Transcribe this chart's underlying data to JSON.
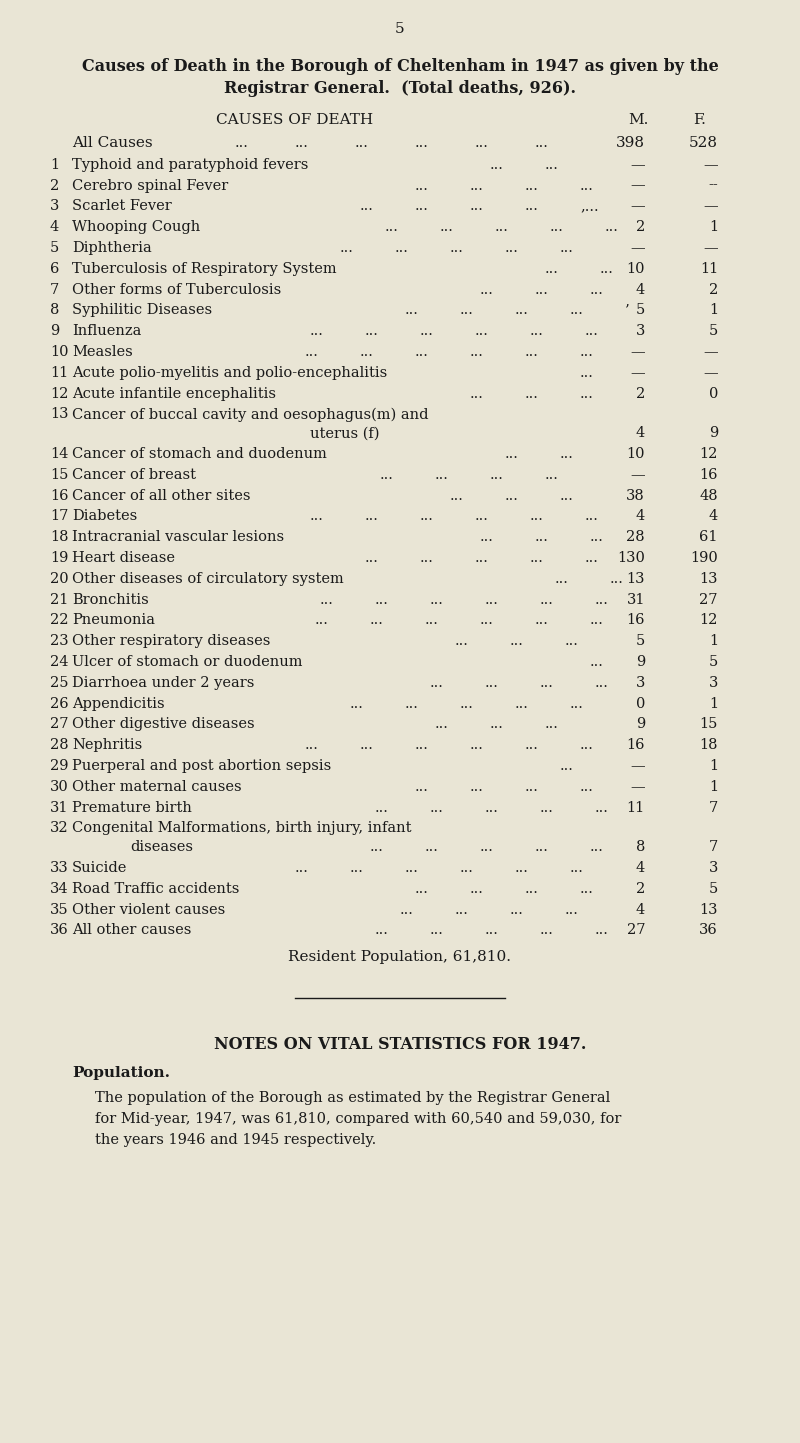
{
  "page_number": "5",
  "title_line1": "Causes of Death in the Borough of Cheltenham in 1947 as given by the",
  "title_line2": "Registrar General.  (Total deaths, 926).",
  "table_header": "CAUSES OF DEATH",
  "col_m": "M.",
  "col_f": "F.",
  "bg_color": "#e9e5d5",
  "text_color": "#1a1a1a",
  "fig_width": 8.0,
  "fig_height": 14.43,
  "resident_pop": "Resident Population, 61,810.",
  "notes_title": "NOTES ON VITAL STATISTICS FOR 1947.",
  "pop_heading": "Population.",
  "pop_text1": "The population of the Borough as estimated by the Registrar General",
  "pop_text2": "for Mid-year, 1947, was 61,810, compared with 60,540 and 59,030, for",
  "pop_text3": "the years 1946 and 1945 respectively."
}
